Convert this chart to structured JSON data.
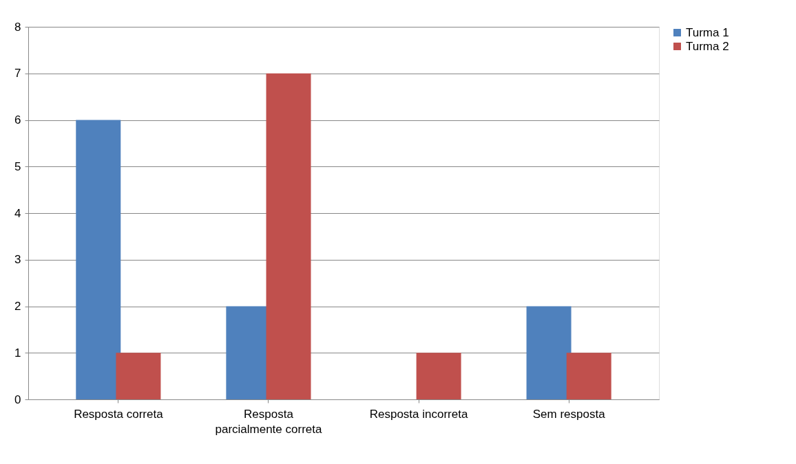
{
  "chart_data": {
    "type": "bar",
    "categories": [
      "Resposta correta",
      "Resposta parcialmente correta",
      "Resposta incorreta",
      "Sem resposta"
    ],
    "series": [
      {
        "name": "Turma 1",
        "color": "#4f81bd",
        "values": [
          6,
          2,
          0,
          2
        ]
      },
      {
        "name": "Turma 2",
        "color": "#c0504d",
        "values": [
          1,
          7,
          1,
          1
        ]
      }
    ],
    "ylim": [
      0,
      8
    ],
    "yticks": [
      0,
      1,
      2,
      3,
      4,
      5,
      6,
      7,
      8
    ],
    "grid": "y",
    "legend": "right"
  }
}
